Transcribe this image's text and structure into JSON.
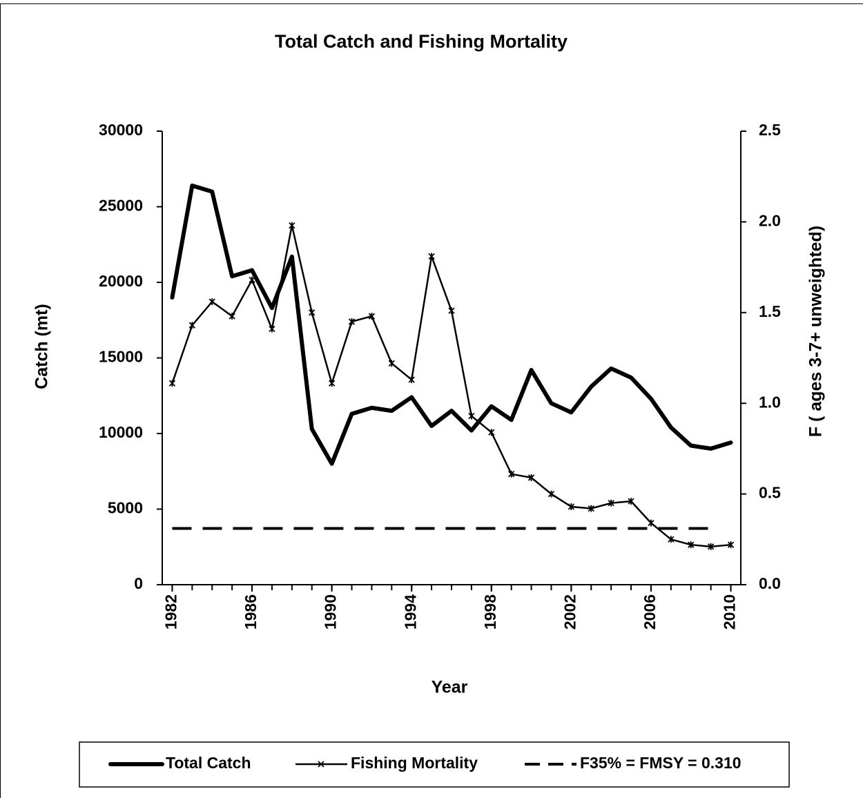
{
  "chart_data": {
    "type": "line",
    "title": "Total Catch and Fishing Mortality",
    "xlabel": "Year",
    "ylabel": "Catch (mt)",
    "y2label": "F ( ages 3-7+ unweighted)",
    "x": [
      1982,
      1983,
      1984,
      1985,
      1986,
      1987,
      1988,
      1989,
      1990,
      1991,
      1992,
      1993,
      1994,
      1995,
      1996,
      1997,
      1998,
      1999,
      2000,
      2001,
      2002,
      2003,
      2004,
      2005,
      2006,
      2007,
      2008,
      2009,
      2010
    ],
    "xlim": [
      1981.5,
      2010.5
    ],
    "xticks": [
      1982,
      1986,
      1990,
      1994,
      1998,
      2002,
      2006,
      2010
    ],
    "ylim": [
      0,
      30000
    ],
    "yticks": [
      0,
      5000,
      10000,
      15000,
      20000,
      25000,
      30000
    ],
    "y2lim": [
      0,
      2.5
    ],
    "y2ticks": [
      {
        "value": 0,
        "label": "0.0"
      },
      0.5,
      {
        "value": 1,
        "label": "1.0"
      },
      1.5,
      {
        "value": 2,
        "label": "2.0"
      },
      2.5
    ],
    "legend": "bottom",
    "series": [
      {
        "name": "Total Catch",
        "color": "#000000",
        "style": "thick",
        "values": [
          19000,
          26400,
          26000,
          20400,
          20800,
          18300,
          21700,
          10300,
          8000,
          11300,
          11700,
          11500,
          12400,
          10500,
          11500,
          10200,
          11800,
          10900,
          14200,
          12000,
          11400,
          13100,
          14300,
          13700,
          12300,
          10400,
          9200,
          9000,
          9400
        ]
      },
      {
        "name": "Fishing Mortality",
        "color": "#000000",
        "style": "marker",
        "axis": "y2",
        "values": [
          1.11,
          1.43,
          1.56,
          1.48,
          1.68,
          1.41,
          1.98,
          1.5,
          1.11,
          1.45,
          1.48,
          1.22,
          1.13,
          1.81,
          1.51,
          0.93,
          0.84,
          0.61,
          0.59,
          0.5,
          0.43,
          0.42,
          0.45,
          0.46,
          0.34,
          0.25,
          0.22,
          0.21,
          0.22
        ]
      },
      {
        "name": "F35% = FMSY = 0.310",
        "color": "#000000",
        "style": "dashed",
        "axis": "y2",
        "values": [
          0.31,
          0.31,
          0.31,
          0.31,
          0.31,
          0.31,
          0.31,
          0.31,
          0.31,
          0.31,
          0.31,
          0.31,
          0.31,
          0.31,
          0.31,
          0.31,
          0.31,
          0.31,
          0.31,
          0.31,
          0.31,
          0.31,
          0.31,
          0.31,
          0.31,
          0.31,
          0.31,
          0.31,
          null
        ]
      }
    ]
  }
}
